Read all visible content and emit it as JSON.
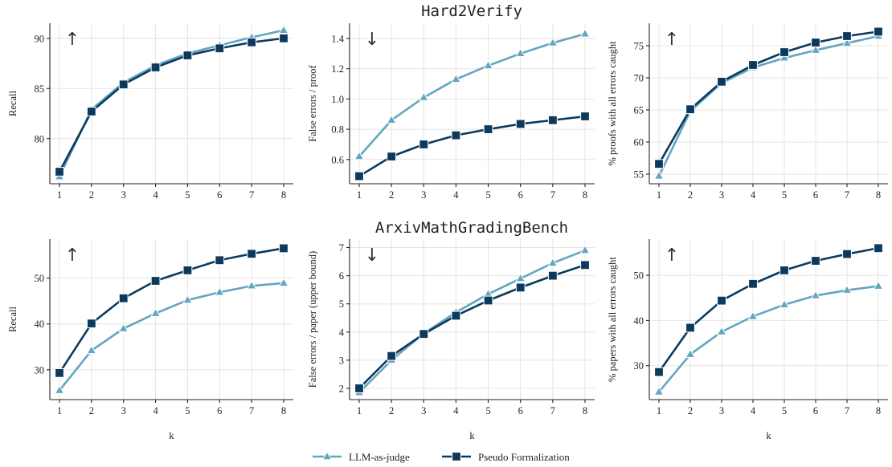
{
  "row_titles": [
    "Hard2Verify",
    "ArxivMathGradingBench"
  ],
  "series_styles": [
    {
      "name": "LLM-as-judge",
      "color": "#64a5c0",
      "marker": "triangle"
    },
    {
      "name": "Pseudo Formalization",
      "color": "#0b3a5e",
      "marker": "square"
    }
  ],
  "chart_data": [
    {
      "type": "line",
      "group": "Hard2Verify",
      "arrow": "↑",
      "x": [
        1,
        2,
        3,
        4,
        5,
        6,
        7,
        8
      ],
      "xlabel": "",
      "ylabel": "Recall",
      "ylim": [
        75.5,
        91.5
      ],
      "yticks": [
        80,
        85,
        90
      ],
      "grid": true,
      "series": [
        {
          "name": "LLM-as-judge",
          "values": [
            76.2,
            82.9,
            85.6,
            87.3,
            88.5,
            89.3,
            90.1,
            90.8
          ]
        },
        {
          "name": "Pseudo Formalization",
          "values": [
            76.7,
            82.7,
            85.4,
            87.1,
            88.3,
            89.0,
            89.6,
            90.0
          ]
        }
      ]
    },
    {
      "type": "line",
      "group": "Hard2Verify",
      "arrow": "↓",
      "x": [
        1,
        2,
        3,
        4,
        5,
        6,
        7,
        8
      ],
      "xlabel": "",
      "ylabel": "False errors / proof",
      "ylim": [
        0.44,
        1.5
      ],
      "yticks": [
        0.6,
        0.8,
        1.0,
        1.2,
        1.4
      ],
      "grid": true,
      "series": [
        {
          "name": "LLM-as-judge",
          "values": [
            0.62,
            0.86,
            1.01,
            1.13,
            1.22,
            1.3,
            1.37,
            1.43
          ]
        },
        {
          "name": "Pseudo Formalization",
          "values": [
            0.49,
            0.62,
            0.7,
            0.76,
            0.8,
            0.835,
            0.86,
            0.885
          ]
        }
      ]
    },
    {
      "type": "line",
      "group": "Hard2Verify",
      "arrow": "↑",
      "x": [
        1,
        2,
        3,
        4,
        5,
        6,
        7,
        8
      ],
      "xlabel": "",
      "ylabel": "% proofs with all errors caught",
      "ylim": [
        53.5,
        78.5
      ],
      "yticks": [
        55,
        60,
        65,
        70,
        75
      ],
      "grid": true,
      "series": [
        {
          "name": "LLM-as-judge",
          "values": [
            54.7,
            64.8,
            69.2,
            71.6,
            73.1,
            74.3,
            75.4,
            76.5
          ]
        },
        {
          "name": "Pseudo Formalization",
          "values": [
            56.6,
            65.1,
            69.4,
            72.0,
            74.0,
            75.5,
            76.5,
            77.2
          ]
        }
      ]
    },
    {
      "type": "line",
      "group": "ArxivMathGradingBench",
      "arrow": "↑",
      "x": [
        1,
        2,
        3,
        4,
        5,
        6,
        7,
        8
      ],
      "xlabel": "k",
      "ylabel": "Recall",
      "ylim": [
        23.5,
        58.5
      ],
      "yticks": [
        30,
        40,
        50
      ],
      "grid": true,
      "series": [
        {
          "name": "LLM-as-judge",
          "values": [
            25.5,
            34.2,
            39.0,
            42.3,
            45.2,
            46.9,
            48.3,
            48.9
          ]
        },
        {
          "name": "Pseudo Formalization",
          "values": [
            29.3,
            40.1,
            45.6,
            49.4,
            51.7,
            53.9,
            55.3,
            56.5
          ]
        }
      ]
    },
    {
      "type": "line",
      "group": "ArxivMathGradingBench",
      "arrow": "↓",
      "x": [
        1,
        2,
        3,
        4,
        5,
        6,
        7,
        8
      ],
      "xlabel": "k",
      "ylabel": "False errors / paper (upper bound)",
      "ylim": [
        1.6,
        7.3
      ],
      "yticks": [
        2,
        3,
        4,
        5,
        6,
        7
      ],
      "grid": true,
      "series": [
        {
          "name": "LLM-as-judge",
          "values": [
            1.85,
            3.0,
            3.95,
            4.7,
            5.35,
            5.9,
            6.45,
            6.9
          ]
        },
        {
          "name": "Pseudo Formalization",
          "values": [
            2.0,
            3.15,
            3.93,
            4.58,
            5.12,
            5.58,
            6.0,
            6.38
          ]
        }
      ]
    },
    {
      "type": "line",
      "group": "ArxivMathGradingBench",
      "arrow": "↑",
      "x": [
        1,
        2,
        3,
        4,
        5,
        6,
        7,
        8
      ],
      "xlabel": "k",
      "ylabel": "% papers with all errors caught",
      "ylim": [
        22.5,
        58.0
      ],
      "yticks": [
        30,
        40,
        50
      ],
      "grid": true,
      "series": [
        {
          "name": "LLM-as-judge",
          "values": [
            24.2,
            32.5,
            37.5,
            40.9,
            43.5,
            45.5,
            46.7,
            47.6
          ]
        },
        {
          "name": "Pseudo Formalization",
          "values": [
            28.6,
            38.4,
            44.4,
            48.1,
            51.1,
            53.2,
            54.7,
            56.0
          ]
        }
      ]
    }
  ]
}
